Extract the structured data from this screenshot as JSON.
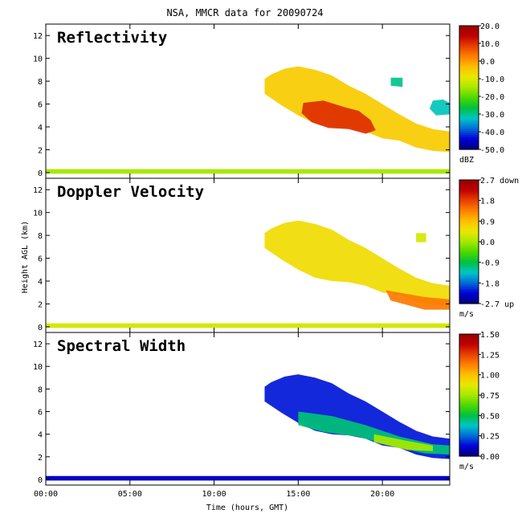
{
  "figure": {
    "title": "NSA, MMCR data for 20090724",
    "xlabel": "Time (hours, GMT)",
    "ylabel": "Height AGL (km)"
  },
  "chart_data": [
    {
      "type": "heatmap",
      "title": "Reflectivity",
      "xlabel": "Time (hours, GMT)",
      "ylabel": "Height AGL (km)",
      "x_ticks": [
        "00:00",
        "05:00",
        "10:00",
        "15:00",
        "20:00"
      ],
      "x_tick_values": [
        0,
        5,
        10,
        15,
        20
      ],
      "xlim": [
        0,
        24
      ],
      "y_ticks": [
        0,
        2,
        4,
        6,
        8,
        10,
        12
      ],
      "ylim": [
        -0.5,
        13
      ],
      "colorbar": {
        "ticks": [
          "20.0",
          "10.0",
          "0.0",
          "-10.0",
          "-20.0",
          "-30.0",
          "-40.0",
          "-50.0"
        ],
        "range": [
          -50,
          20
        ],
        "unit": "dBZ",
        "colors": [
          "#00007a",
          "#0000d8",
          "#006cd8",
          "#00c6c6",
          "#00c040",
          "#4cd800",
          "#a8e800",
          "#e8e800",
          "#ffc000",
          "#ff8000",
          "#e84000",
          "#c00000",
          "#980000"
        ]
      },
      "features": [
        {
          "kind": "surface_layer",
          "t_start": 0,
          "t_end": 24,
          "h_bottom": -0.1,
          "h_top": 0.3,
          "value": -15
        },
        {
          "kind": "cloud",
          "polygon": [
            [
              13.0,
              8.2
            ],
            [
              13.4,
              8.6
            ],
            [
              14.2,
              9.1
            ],
            [
              15.0,
              9.3
            ],
            [
              16.0,
              9.0
            ],
            [
              17.0,
              8.5
            ],
            [
              18.0,
              7.6
            ],
            [
              19.0,
              6.9
            ],
            [
              20.0,
              6.0
            ],
            [
              21.0,
              5.1
            ],
            [
              22.0,
              4.3
            ],
            [
              23.0,
              3.8
            ],
            [
              24.0,
              3.6
            ],
            [
              24.0,
              1.8
            ],
            [
              23.0,
              1.9
            ],
            [
              22.0,
              2.2
            ],
            [
              21.0,
              2.8
            ],
            [
              20.0,
              3.0
            ],
            [
              19.0,
              3.6
            ],
            [
              18.0,
              3.9
            ],
            [
              17.0,
              4.0
            ],
            [
              16.0,
              4.3
            ],
            [
              15.0,
              5.0
            ],
            [
              14.0,
              5.9
            ],
            [
              13.0,
              6.9
            ]
          ],
          "value": -5
        },
        {
          "kind": "cloud",
          "polygon": [
            [
              15.3,
              6.1
            ],
            [
              16.5,
              6.3
            ],
            [
              17.8,
              5.7
            ],
            [
              18.6,
              5.4
            ],
            [
              19.3,
              4.6
            ],
            [
              19.6,
              3.7
            ],
            [
              19.0,
              3.4
            ],
            [
              18.0,
              3.8
            ],
            [
              16.8,
              3.9
            ],
            [
              15.8,
              4.4
            ],
            [
              15.2,
              5.2
            ]
          ],
          "value": 10
        },
        {
          "kind": "cloud",
          "polygon": [
            [
              23.0,
              6.3
            ],
            [
              23.6,
              6.4
            ],
            [
              24.0,
              6.1
            ],
            [
              24.0,
              5.1
            ],
            [
              23.2,
              5.0
            ],
            [
              22.8,
              5.6
            ]
          ],
          "value": -32
        },
        {
          "kind": "cloud",
          "polygon": [
            [
              20.5,
              8.3
            ],
            [
              21.2,
              8.3
            ],
            [
              21.2,
              7.5
            ],
            [
              20.5,
              7.6
            ]
          ],
          "value": -30
        }
      ]
    },
    {
      "type": "heatmap",
      "title": "Doppler Velocity",
      "xlabel": "Time (hours, GMT)",
      "ylabel": "Height AGL (km)",
      "x_ticks": [
        "00:00",
        "05:00",
        "10:00",
        "15:00",
        "20:00"
      ],
      "x_tick_values": [
        0,
        5,
        10,
        15,
        20
      ],
      "xlim": [
        0,
        24
      ],
      "y_ticks": [
        0,
        2,
        4,
        6,
        8,
        10,
        12
      ],
      "ylim": [
        -0.5,
        13
      ],
      "colorbar": {
        "ticks": [
          "2.7 down",
          "1.8",
          "0.9",
          "0.0",
          "-0.9",
          "-1.8",
          "-2.7 up"
        ],
        "range": [
          -2.7,
          2.7
        ],
        "unit": "m/s",
        "colors": [
          "#00007a",
          "#0000d8",
          "#006cd8",
          "#00c6c6",
          "#00c040",
          "#4cd800",
          "#a8e800",
          "#e8e800",
          "#ffc000",
          "#ff8000",
          "#e84000",
          "#c00000",
          "#980000"
        ]
      },
      "features": [
        {
          "kind": "surface_layer",
          "t_start": 0,
          "t_end": 24,
          "h_bottom": -0.1,
          "h_top": 0.3,
          "value": 0.3
        },
        {
          "kind": "cloud",
          "polygon": [
            [
              13.0,
              8.2
            ],
            [
              13.4,
              8.6
            ],
            [
              14.2,
              9.1
            ],
            [
              15.0,
              9.3
            ],
            [
              16.0,
              9.0
            ],
            [
              17.0,
              8.5
            ],
            [
              18.0,
              7.6
            ],
            [
              19.0,
              6.9
            ],
            [
              20.0,
              6.0
            ],
            [
              21.0,
              5.1
            ],
            [
              22.0,
              4.3
            ],
            [
              23.0,
              3.8
            ],
            [
              24.0,
              3.6
            ],
            [
              24.0,
              1.8
            ],
            [
              23.0,
              1.9
            ],
            [
              22.0,
              2.2
            ],
            [
              21.0,
              2.8
            ],
            [
              20.0,
              3.0
            ],
            [
              19.0,
              3.6
            ],
            [
              18.0,
              3.9
            ],
            [
              17.0,
              4.0
            ],
            [
              16.0,
              4.3
            ],
            [
              15.0,
              5.0
            ],
            [
              14.0,
              5.9
            ],
            [
              13.0,
              6.9
            ]
          ],
          "value": 0.6
        },
        {
          "kind": "cloud",
          "polygon": [
            [
              20.2,
              3.2
            ],
            [
              22.5,
              2.6
            ],
            [
              24.0,
              2.4
            ],
            [
              24.0,
              1.5
            ],
            [
              22.5,
              1.5
            ],
            [
              20.5,
              2.3
            ]
          ],
          "value": 1.4
        },
        {
          "kind": "cloud",
          "polygon": [
            [
              22.0,
              8.2
            ],
            [
              22.6,
              8.2
            ],
            [
              22.6,
              7.4
            ],
            [
              22.0,
              7.4
            ]
          ],
          "value": 0.3
        }
      ]
    },
    {
      "type": "heatmap",
      "title": "Spectral Width",
      "xlabel": "Time (hours, GMT)",
      "ylabel": "Height AGL (km)",
      "x_ticks": [
        "00:00",
        "05:00",
        "10:00",
        "15:00",
        "20:00"
      ],
      "x_tick_values": [
        0,
        5,
        10,
        15,
        20
      ],
      "xlim": [
        0,
        24
      ],
      "y_ticks": [
        0,
        2,
        4,
        6,
        8,
        10,
        12
      ],
      "ylim": [
        -0.5,
        13
      ],
      "colorbar": {
        "ticks": [
          "1.50",
          "1.25",
          "1.00",
          "0.75",
          "0.50",
          "0.25",
          "0.00"
        ],
        "range": [
          0,
          1.5
        ],
        "unit": "m/s",
        "colors": [
          "#00007a",
          "#0000d8",
          "#006cd8",
          "#00c6c6",
          "#00c040",
          "#4cd800",
          "#a8e800",
          "#e8e800",
          "#ffc000",
          "#ff8000",
          "#e84000",
          "#c00000",
          "#980000"
        ]
      },
      "features": [
        {
          "kind": "surface_layer",
          "t_start": 0,
          "t_end": 24,
          "h_bottom": -0.1,
          "h_top": 0.3,
          "value": 0.1
        },
        {
          "kind": "cloud",
          "polygon": [
            [
              13.0,
              8.2
            ],
            [
              13.4,
              8.6
            ],
            [
              14.2,
              9.1
            ],
            [
              15.0,
              9.3
            ],
            [
              16.0,
              9.0
            ],
            [
              17.0,
              8.5
            ],
            [
              18.0,
              7.6
            ],
            [
              19.0,
              6.9
            ],
            [
              20.0,
              6.0
            ],
            [
              21.0,
              5.1
            ],
            [
              22.0,
              4.3
            ],
            [
              23.0,
              3.8
            ],
            [
              24.0,
              3.6
            ],
            [
              24.0,
              1.8
            ],
            [
              23.0,
              1.9
            ],
            [
              22.0,
              2.2
            ],
            [
              21.0,
              2.8
            ],
            [
              20.0,
              3.0
            ],
            [
              19.0,
              3.6
            ],
            [
              18.0,
              3.9
            ],
            [
              17.0,
              4.0
            ],
            [
              16.0,
              4.3
            ],
            [
              15.0,
              5.0
            ],
            [
              14.0,
              5.9
            ],
            [
              13.0,
              6.9
            ]
          ],
          "value": 0.15
        },
        {
          "kind": "cloud",
          "polygon": [
            [
              15.0,
              6.0
            ],
            [
              17.0,
              5.6
            ],
            [
              19.0,
              4.8
            ],
            [
              21.0,
              3.8
            ],
            [
              23.0,
              3.1
            ],
            [
              24.0,
              3.0
            ],
            [
              24.0,
              2.2
            ],
            [
              22.5,
              2.3
            ],
            [
              20.5,
              3.0
            ],
            [
              18.5,
              3.8
            ],
            [
              16.5,
              4.2
            ],
            [
              15.0,
              4.8
            ]
          ],
          "value": 0.45
        },
        {
          "kind": "cloud",
          "polygon": [
            [
              19.5,
              4.0
            ],
            [
              21.5,
              3.4
            ],
            [
              23.0,
              3.0
            ],
            [
              23.0,
              2.5
            ],
            [
              21.5,
              2.6
            ],
            [
              19.5,
              3.3
            ]
          ],
          "value": 0.75
        }
      ]
    }
  ]
}
